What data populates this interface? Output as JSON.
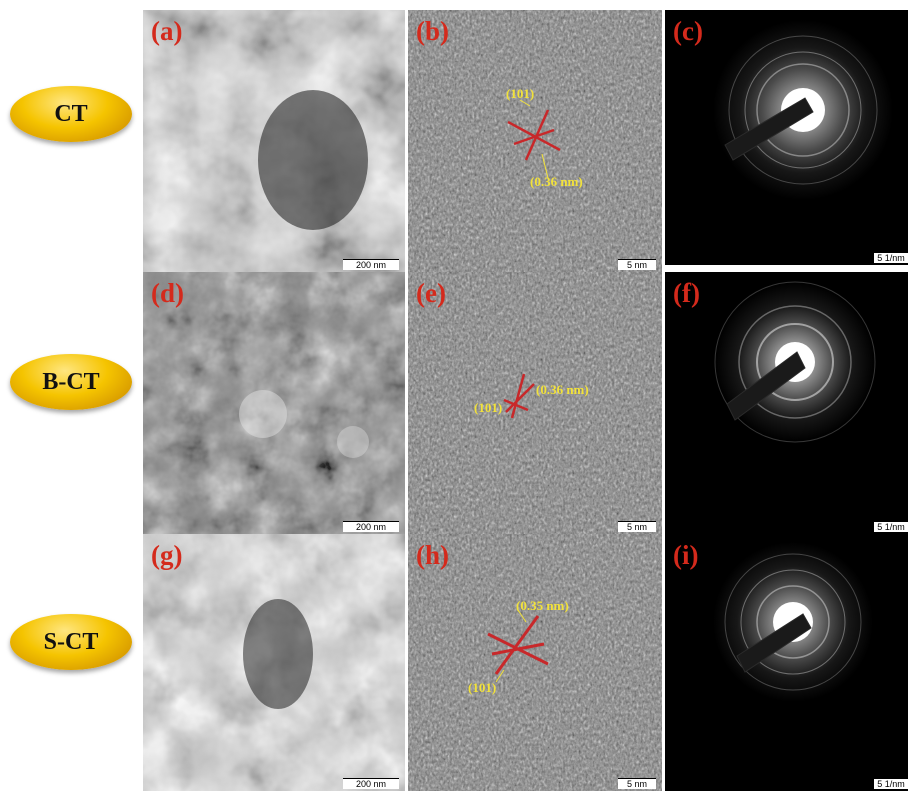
{
  "rows": [
    {
      "label": "CT"
    },
    {
      "label": "B-CT"
    },
    {
      "label": "S-CT"
    }
  ],
  "panels": {
    "a": {
      "letter": "(a)",
      "scale": "200 nm"
    },
    "b": {
      "letter": "(b)",
      "scale": "5 nm",
      "plane": "(101)",
      "spacing": "(0.36 nm)"
    },
    "c": {
      "letter": "(c)",
      "scale": "5 1/nm"
    },
    "d": {
      "letter": "(d)",
      "scale": "200 nm"
    },
    "e": {
      "letter": "(e)",
      "scale": "5 nm",
      "plane": "(101)",
      "spacing": "(0.36 nm)"
    },
    "f": {
      "letter": "(f)",
      "scale": "5 1/nm"
    },
    "g": {
      "letter": "(g)",
      "scale": "200 nm"
    },
    "h": {
      "letter": "(h)",
      "scale": "5 nm",
      "plane": "(101)",
      "spacing": "(0.35 nm)"
    },
    "i": {
      "letter": "(i)",
      "scale": "5 1/nm"
    }
  },
  "colors": {
    "letter": "#d42a1c",
    "annotation": "#f2e23a",
    "lattice_marker": "#c8282a",
    "label_ellipse": "#f5c400"
  }
}
